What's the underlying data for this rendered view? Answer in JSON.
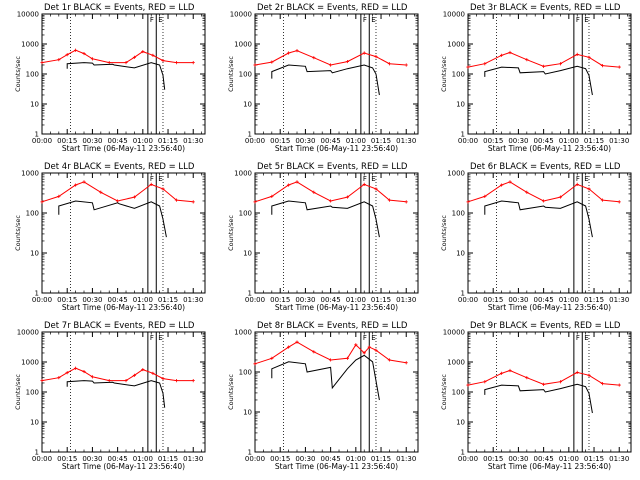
{
  "chart_data": [
    {
      "type": "line",
      "title": "Det 1r BLACK = Events, RED = LLD",
      "xlabel": "Start Time (06-May-11 23:56:40)",
      "ylabel": "Counts/sec",
      "yscale": "log",
      "ylim": [
        1,
        10000
      ],
      "xlim": [
        "00:00",
        "01:37"
      ],
      "yticks": [
        "1",
        "10",
        "100",
        "1000",
        "10000"
      ],
      "xticks": [
        "00:00",
        "00:15",
        "00:30",
        "00:45",
        "01:00",
        "01:15",
        "01:30"
      ],
      "markers": [
        {
          "label": "F",
          "t": "01:03"
        },
        {
          "label": "E",
          "t": "01:08"
        }
      ],
      "dotted_lines": [
        "00:17",
        "01:12"
      ],
      "series": [
        {
          "color": "#ff0000",
          "marker": "+",
          "x": [
            "00:00",
            "00:10",
            "00:15",
            "00:20",
            "00:25",
            "00:30",
            "00:40",
            "00:50",
            "00:55",
            "01:00",
            "01:06",
            "01:12",
            "01:20",
            "01:30"
          ],
          "y": [
            240,
            300,
            440,
            620,
            480,
            320,
            240,
            240,
            360,
            560,
            420,
            280,
            240,
            240
          ]
        },
        {
          "color": "#000000",
          "x": [
            "00:15",
            "00:15",
            "00:25",
            "00:30",
            "00:31",
            "00:42",
            "00:43",
            "00:55",
            "01:05",
            "01:10",
            "01:12",
            "01:13"
          ],
          "y": [
            150,
            220,
            240,
            230,
            200,
            210,
            200,
            160,
            240,
            200,
            90,
            30
          ]
        }
      ]
    },
    {
      "type": "line",
      "title": "Det 2r BLACK = Events, RED = LLD",
      "xlabel": "Start Time (06-May-11 23:56:40)",
      "ylabel": "Counts/sec",
      "yscale": "log",
      "ylim": [
        1,
        10000
      ],
      "xlim": [
        "00:00",
        "01:37"
      ],
      "yticks": [
        "1",
        "10",
        "100",
        "1000",
        "10000"
      ],
      "xticks": [
        "00:00",
        "00:15",
        "00:30",
        "00:45",
        "01:00",
        "01:15",
        "01:30"
      ],
      "markers": [
        {
          "label": "F",
          "t": "01:03"
        },
        {
          "label": "E",
          "t": "01:08"
        }
      ],
      "dotted_lines": [
        "00:17",
        "01:12"
      ],
      "series": [
        {
          "color": "#ff0000",
          "marker": "+",
          "x": [
            "00:00",
            "00:10",
            "00:20",
            "00:25",
            "00:35",
            "00:45",
            "00:55",
            "01:05",
            "01:12",
            "01:20",
            "01:30"
          ],
          "y": [
            200,
            250,
            500,
            600,
            350,
            200,
            260,
            500,
            380,
            220,
            200
          ]
        },
        {
          "color": "#000000",
          "x": [
            "00:10",
            "00:10",
            "00:20",
            "00:30",
            "00:31",
            "00:45",
            "00:46",
            "00:55",
            "01:05",
            "01:10",
            "01:12",
            "01:14"
          ],
          "y": [
            70,
            120,
            200,
            180,
            120,
            130,
            110,
            150,
            200,
            160,
            100,
            20
          ]
        }
      ]
    },
    {
      "type": "line",
      "title": "Det 3r BLACK = Events, RED = LLD",
      "xlabel": "Start Time (06-May-11 23:56:40)",
      "ylabel": "Counts/sec",
      "yscale": "log",
      "ylim": [
        1,
        10000
      ],
      "xlim": [
        "00:00",
        "01:37"
      ],
      "yticks": [
        "1",
        "10",
        "100",
        "1000",
        "10000"
      ],
      "xticks": [
        "00:00",
        "00:15",
        "00:30",
        "00:45",
        "01:00",
        "01:15",
        "01:30"
      ],
      "markers": [
        {
          "label": "F",
          "t": "01:03"
        },
        {
          "label": "E",
          "t": "01:08"
        }
      ],
      "dotted_lines": [
        "00:17",
        "01:12"
      ],
      "series": [
        {
          "color": "#ff0000",
          "marker": "+",
          "x": [
            "00:00",
            "00:10",
            "00:20",
            "00:25",
            "00:35",
            "00:45",
            "00:55",
            "01:05",
            "01:12",
            "01:20",
            "01:30"
          ],
          "y": [
            170,
            220,
            420,
            520,
            300,
            180,
            220,
            450,
            360,
            190,
            170
          ]
        },
        {
          "color": "#000000",
          "x": [
            "00:10",
            "00:10",
            "00:20",
            "00:30",
            "00:31",
            "00:45",
            "00:46",
            "00:55",
            "01:05",
            "01:10",
            "01:12",
            "01:14"
          ],
          "y": [
            80,
            120,
            170,
            160,
            110,
            120,
            100,
            130,
            180,
            150,
            90,
            20
          ]
        }
      ]
    },
    {
      "type": "line",
      "title": "Det 4r BLACK = Events, RED = LLD",
      "xlabel": "Start Time (06-May-11 23:56:40)",
      "ylabel": "Counts/sec",
      "yscale": "log",
      "ylim": [
        1,
        1000
      ],
      "xlim": [
        "00:00",
        "01:37"
      ],
      "yticks": [
        "1",
        "10",
        "100",
        "1000"
      ],
      "xticks": [
        "00:00",
        "00:15",
        "00:30",
        "00:45",
        "01:00",
        "01:15",
        "01:30"
      ],
      "markers": [
        {
          "label": "F",
          "t": "01:03"
        },
        {
          "label": "E",
          "t": "01:08"
        }
      ],
      "dotted_lines": [
        "00:17",
        "01:12"
      ],
      "series": [
        {
          "color": "#ff0000",
          "marker": "+",
          "x": [
            "00:00",
            "00:10",
            "00:20",
            "00:25",
            "00:35",
            "00:45",
            "00:55",
            "01:05",
            "01:12",
            "01:20",
            "01:30"
          ],
          "y": [
            190,
            260,
            500,
            600,
            330,
            200,
            250,
            520,
            400,
            210,
            190
          ]
        },
        {
          "color": "#000000",
          "x": [
            "00:10",
            "00:10",
            "00:20",
            "00:30",
            "00:31",
            "00:45",
            "00:46",
            "00:55",
            "01:05",
            "01:10",
            "01:12",
            "01:14"
          ],
          "y": [
            90,
            150,
            200,
            180,
            120,
            180,
            170,
            130,
            190,
            150,
            70,
            25
          ]
        }
      ]
    },
    {
      "type": "line",
      "title": "Det 5r BLACK = Events, RED = LLD",
      "xlabel": "Start Time (06-May-11 23:56:40)",
      "ylabel": "Counts/sec",
      "yscale": "log",
      "ylim": [
        1,
        1000
      ],
      "xlim": [
        "00:00",
        "01:37"
      ],
      "yticks": [
        "1",
        "10",
        "100",
        "1000"
      ],
      "xticks": [
        "00:00",
        "00:15",
        "00:30",
        "00:45",
        "01:00",
        "01:15",
        "01:30"
      ],
      "markers": [
        {
          "label": "F",
          "t": "01:03"
        },
        {
          "label": "E",
          "t": "01:08"
        }
      ],
      "dotted_lines": [
        "00:17",
        "01:12"
      ],
      "series": [
        {
          "color": "#ff0000",
          "marker": "+",
          "x": [
            "00:00",
            "00:10",
            "00:20",
            "00:25",
            "00:35",
            "00:45",
            "00:55",
            "01:05",
            "01:12",
            "01:20",
            "01:30"
          ],
          "y": [
            190,
            260,
            500,
            600,
            330,
            200,
            250,
            520,
            400,
            210,
            190
          ]
        },
        {
          "color": "#000000",
          "x": [
            "00:10",
            "00:10",
            "00:20",
            "00:30",
            "00:31",
            "00:45",
            "00:46",
            "00:55",
            "01:05",
            "01:10",
            "01:12",
            "01:14"
          ],
          "y": [
            90,
            150,
            200,
            180,
            120,
            150,
            140,
            130,
            190,
            150,
            70,
            25
          ]
        }
      ]
    },
    {
      "type": "line",
      "title": "Det 6r BLACK = Events, RED = LLD",
      "xlabel": "Start Time (06-May-11 23:56:40)",
      "ylabel": "Counts/sec",
      "yscale": "log",
      "ylim": [
        1,
        1000
      ],
      "xlim": [
        "00:00",
        "01:37"
      ],
      "yticks": [
        "1",
        "10",
        "100",
        "1000"
      ],
      "xticks": [
        "00:00",
        "00:15",
        "00:30",
        "00:45",
        "01:00",
        "01:15",
        "01:30"
      ],
      "markers": [
        {
          "label": "F",
          "t": "01:03"
        },
        {
          "label": "E",
          "t": "01:08"
        }
      ],
      "dotted_lines": [
        "00:17",
        "01:12"
      ],
      "series": [
        {
          "color": "#ff0000",
          "marker": "+",
          "x": [
            "00:00",
            "00:10",
            "00:20",
            "00:25",
            "00:35",
            "00:45",
            "00:55",
            "01:05",
            "01:12",
            "01:20",
            "01:30"
          ],
          "y": [
            190,
            260,
            500,
            600,
            330,
            200,
            250,
            520,
            400,
            210,
            190
          ]
        },
        {
          "color": "#000000",
          "x": [
            "00:10",
            "00:10",
            "00:20",
            "00:30",
            "00:31",
            "00:45",
            "00:46",
            "00:55",
            "01:05",
            "01:10",
            "01:12",
            "01:14"
          ],
          "y": [
            90,
            150,
            200,
            180,
            120,
            150,
            140,
            130,
            190,
            150,
            70,
            25
          ]
        }
      ]
    },
    {
      "type": "line",
      "title": "Det 7r BLACK = Events, RED = LLD",
      "xlabel": "Start Time (06-May-11 23:56:40)",
      "ylabel": "Counts/sec",
      "yscale": "log",
      "ylim": [
        1,
        10000
      ],
      "xlim": [
        "00:00",
        "01:37"
      ],
      "yticks": [
        "1",
        "10",
        "100",
        "1000",
        "10000"
      ],
      "xticks": [
        "00:00",
        "00:15",
        "00:30",
        "00:45",
        "01:00",
        "01:15",
        "01:30"
      ],
      "markers": [
        {
          "label": "F",
          "t": "01:03"
        },
        {
          "label": "E",
          "t": "01:08"
        }
      ],
      "dotted_lines": [
        "00:17",
        "01:12"
      ],
      "series": [
        {
          "color": "#ff0000",
          "marker": "+",
          "x": [
            "00:00",
            "00:10",
            "00:15",
            "00:20",
            "00:25",
            "00:30",
            "00:40",
            "00:50",
            "00:55",
            "01:00",
            "01:06",
            "01:12",
            "01:20",
            "01:30"
          ],
          "y": [
            240,
            300,
            440,
            620,
            480,
            320,
            240,
            240,
            360,
            560,
            420,
            280,
            240,
            240
          ]
        },
        {
          "color": "#000000",
          "x": [
            "00:15",
            "00:15",
            "00:25",
            "00:30",
            "00:31",
            "00:42",
            "00:43",
            "00:55",
            "01:05",
            "01:10",
            "01:12",
            "01:13"
          ],
          "y": [
            150,
            220,
            240,
            230,
            200,
            210,
            200,
            160,
            240,
            200,
            90,
            30
          ]
        }
      ]
    },
    {
      "type": "line",
      "title": "Det 8r BLACK = Events, RED = LLD",
      "xlabel": "Start Time (06-May-11 23:56:40)",
      "ylabel": "Counts/sec",
      "yscale": "log",
      "ylim": [
        1,
        1000
      ],
      "xlim": [
        "00:00",
        "01:37"
      ],
      "yticks": [
        "1",
        "10",
        "100",
        "1000"
      ],
      "xticks": [
        "00:00",
        "00:15",
        "00:30",
        "00:45",
        "01:00",
        "01:15",
        "01:30"
      ],
      "markers": [
        {
          "label": "F",
          "t": "01:03"
        },
        {
          "label": "E",
          "t": "01:08"
        }
      ],
      "dotted_lines": [
        "00:17",
        "01:12"
      ],
      "series": [
        {
          "color": "#ff0000",
          "marker": "+",
          "x": [
            "00:00",
            "00:10",
            "00:20",
            "00:25",
            "00:35",
            "00:45",
            "00:55",
            "01:00",
            "01:05",
            "01:08",
            "01:12",
            "01:20",
            "01:30"
          ],
          "y": [
            160,
            220,
            420,
            560,
            320,
            200,
            220,
            480,
            300,
            420,
            350,
            200,
            170
          ]
        },
        {
          "color": "#000000",
          "x": [
            "00:10",
            "00:10",
            "00:20",
            "00:30",
            "00:31",
            "00:45",
            "00:46",
            "00:55",
            "01:00",
            "01:05",
            "01:10",
            "01:12",
            "01:14"
          ],
          "y": [
            70,
            120,
            180,
            160,
            100,
            130,
            40,
            120,
            200,
            260,
            180,
            60,
            20
          ]
        }
      ]
    },
    {
      "type": "line",
      "title": "Det 9r BLACK = Events, RED = LLD",
      "xlabel": "Start Time (06-May-11 23:56:40)",
      "ylabel": "Counts/sec",
      "yscale": "log",
      "ylim": [
        1,
        10000
      ],
      "xlim": [
        "00:00",
        "01:37"
      ],
      "yticks": [
        "1",
        "10",
        "100",
        "1000",
        "10000"
      ],
      "xticks": [
        "00:00",
        "00:15",
        "00:30",
        "00:45",
        "01:00",
        "01:15",
        "01:30"
      ],
      "markers": [
        {
          "label": "F",
          "t": "01:03"
        },
        {
          "label": "E",
          "t": "01:08"
        }
      ],
      "dotted_lines": [
        "00:17",
        "01:12"
      ],
      "series": [
        {
          "color": "#ff0000",
          "marker": "+",
          "x": [
            "00:00",
            "00:10",
            "00:20",
            "00:25",
            "00:35",
            "00:45",
            "00:55",
            "01:05",
            "01:12",
            "01:20",
            "01:30"
          ],
          "y": [
            170,
            220,
            420,
            520,
            300,
            180,
            220,
            450,
            360,
            190,
            170
          ]
        },
        {
          "color": "#000000",
          "x": [
            "00:10",
            "00:10",
            "00:20",
            "00:30",
            "00:31",
            "00:45",
            "00:46",
            "00:55",
            "01:05",
            "01:10",
            "01:12",
            "01:14"
          ],
          "y": [
            80,
            120,
            170,
            160,
            110,
            120,
            100,
            130,
            180,
            150,
            90,
            20
          ]
        }
      ]
    }
  ]
}
